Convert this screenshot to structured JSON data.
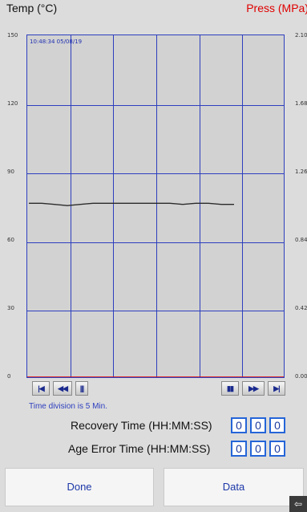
{
  "header": {
    "temp_title": "Temp (°C)",
    "press_title": "Press (MPa)"
  },
  "chart": {
    "timestamp": "10:48:34 05/08/19",
    "left_ticks": [
      "150",
      "120",
      "90",
      "60",
      "30",
      "0"
    ],
    "right_ticks": [
      "2.10",
      "1.68",
      "1.26",
      "0.84",
      "0.42",
      "0.00"
    ],
    "time_division": "Time division is 5 Min.",
    "colors": {
      "grid": "#2d3fbe",
      "temp_line": "#2b2b2b",
      "zero_line": "#e00000",
      "press_title": "#e00000"
    }
  },
  "chart_data": {
    "type": "line",
    "ylim_left": [
      0,
      150
    ],
    "ylim_right": [
      0,
      2.1
    ],
    "grid": true,
    "series": [
      {
        "values": [
          77,
          77,
          76.5,
          76,
          76.5,
          77,
          77,
          77,
          77,
          77,
          77,
          77,
          76.5,
          77,
          77,
          76.5,
          76.5
        ]
      }
    ]
  },
  "controls": {
    "first": "|◀",
    "rewind": "◀◀",
    "scrub": "|||",
    "pause": "▮▮",
    "forward": "▶▶",
    "last": "▶|"
  },
  "recovery": {
    "label": "Recovery Time (HH:MM:SS)",
    "hh": "0",
    "mm": "0",
    "ss": "0"
  },
  "age_error": {
    "label": "Age Error Time (HH:MM:SS)",
    "hh": "0",
    "mm": "0",
    "ss": "0"
  },
  "buttons": {
    "done": "Done",
    "data": "Data"
  },
  "corner": {
    "icon": "back-arrow-icon",
    "glyph": "⇦"
  }
}
